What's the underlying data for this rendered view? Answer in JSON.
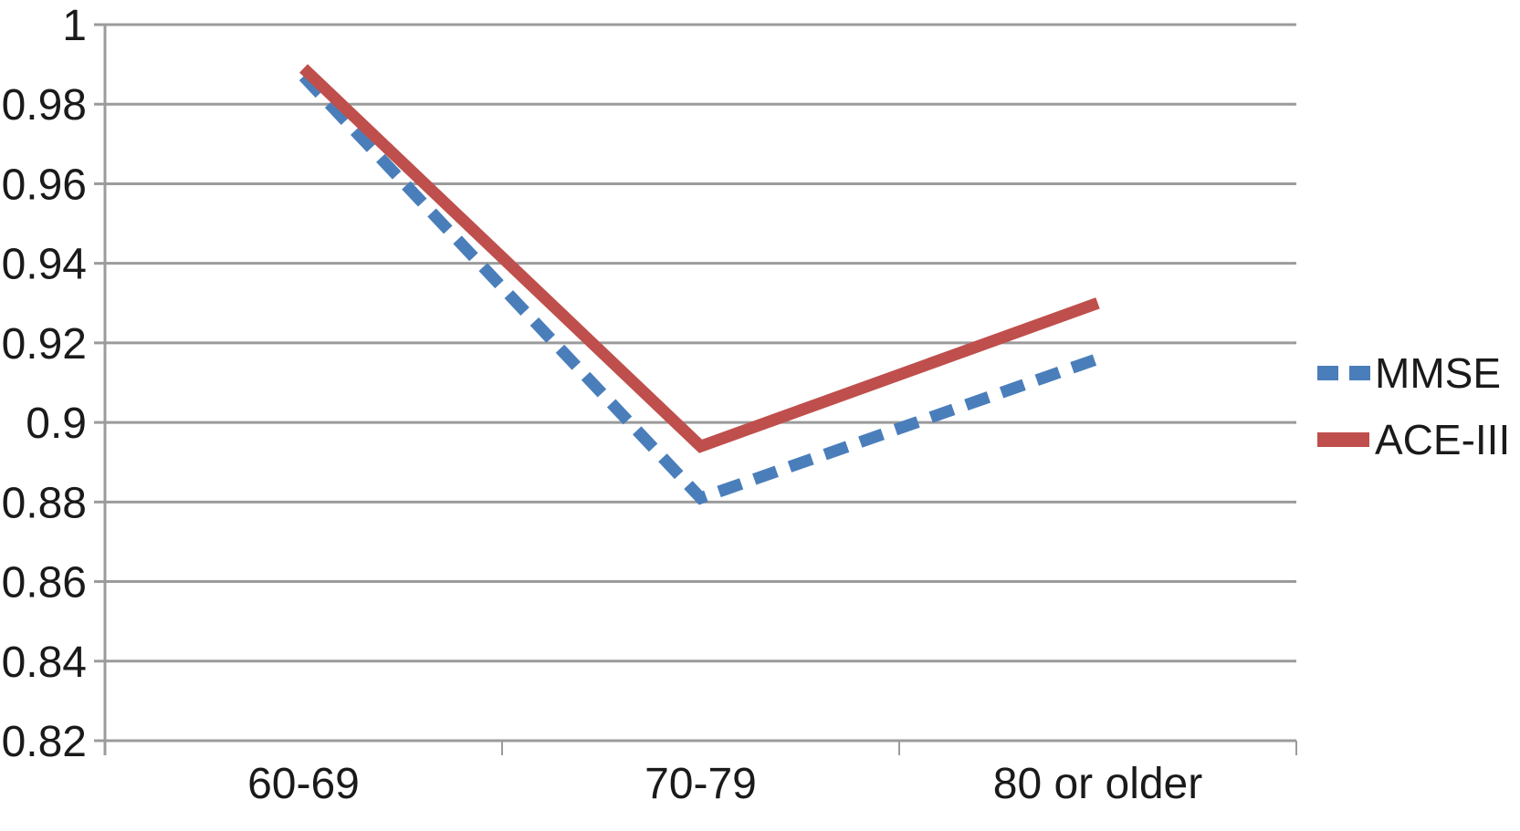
{
  "chart_data": {
    "type": "line",
    "categories": [
      "60-69",
      "70-79",
      "80 or older"
    ],
    "series": [
      {
        "name": "MMSE",
        "values": [
          0.987,
          0.881,
          0.916
        ],
        "color": "#4A7EBB",
        "style": "dashed"
      },
      {
        "name": "ACE-III",
        "values": [
          0.989,
          0.894,
          0.93
        ],
        "color": "#BF4F4C",
        "style": "solid"
      }
    ],
    "ylim": [
      0.82,
      1.0
    ],
    "ytick_step": 0.02,
    "yticks": [
      "1",
      "0.98",
      "0.96",
      "0.94",
      "0.92",
      "0.9",
      "0.88",
      "0.86",
      "0.84",
      "0.82"
    ],
    "grid": true,
    "legend_position": "right",
    "colors": {
      "gridline": "#9B9B9B",
      "axis": "#9B9B9B",
      "text": "#1A1A1A",
      "background": "#FFFFFF"
    }
  }
}
